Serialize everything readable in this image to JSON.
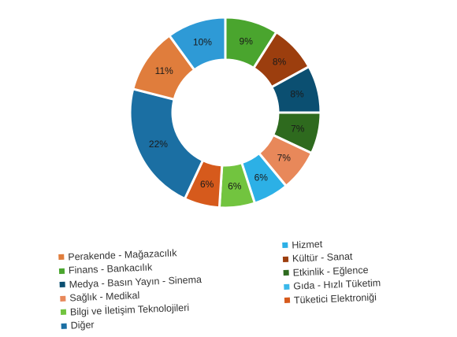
{
  "chart_data": {
    "type": "pie",
    "variant": "donut",
    "title": "",
    "legend_placement": "bottom",
    "slices": [
      {
        "label": "Hizmet",
        "value": 9,
        "value_label": "9%",
        "color": "#4aa52e"
      },
      {
        "label": "Kültür - Sanat",
        "value": 8,
        "value_label": "8%",
        "color": "#9c3e0e"
      },
      {
        "label": "Etkinlik - Eğlence",
        "value": 8,
        "value_label": "8%",
        "color": "#0b4f71"
      },
      {
        "label": "Gıda - Hızlı Tüketim",
        "value": 7,
        "value_label": "7%",
        "color": "#2e6a1e"
      },
      {
        "label": "Tüketici Elektroniği",
        "value": 7,
        "value_label": "7%",
        "color": "#e8885a"
      },
      {
        "label": "Diğer",
        "value": 6,
        "value_label": "6%",
        "color": "#2cb0e6"
      },
      {
        "label": "Bilgi ve İletişim Teknolojileri",
        "value": 6,
        "value_label": "6%",
        "color": "#72c43f"
      },
      {
        "label": "Sağlık - Medikal",
        "value": 6,
        "value_label": "6%",
        "color": "#d65a1c"
      },
      {
        "label": "Perakende - Mağazacılık",
        "value": 22,
        "value_label": "22%",
        "color": "#1b6fa3"
      },
      {
        "label": "Finans - Bankacılık",
        "value": 11,
        "value_label": "11%",
        "color": "#e07d3c"
      },
      {
        "label": "Medya - Basın Yayın - Sinema",
        "value": 10,
        "value_label": "10%",
        "color": "#2e9ad6"
      }
    ],
    "legend_left": [
      {
        "label": "Perakende - Mağazacılık",
        "color": "#e07d3c"
      },
      {
        "label": "Finans - Bankacılık",
        "color": "#4aa52e"
      },
      {
        "label": "Medya - Basın Yayın - Sinema",
        "color": "#0b4f71"
      },
      {
        "label": "Sağlık - Medikal",
        "color": "#e8885a"
      },
      {
        "label": "Bilgi ve İletişim Teknolojileri",
        "color": "#72c43f"
      },
      {
        "label": "Diğer",
        "color": "#1b6fa3"
      }
    ],
    "legend_right": [
      {
        "label": "Hizmet",
        "color": "#2cb0e6"
      },
      {
        "label": "Kültür - Sanat",
        "color": "#9c3e0e"
      },
      {
        "label": "Etkinlik - Eğlence",
        "color": "#2e6a1e"
      },
      {
        "label": "Gıda - Hızlı Tüketim",
        "color": "#3ab8ea"
      },
      {
        "label": "Tüketici Elektroniği",
        "color": "#d65a1c"
      }
    ]
  }
}
